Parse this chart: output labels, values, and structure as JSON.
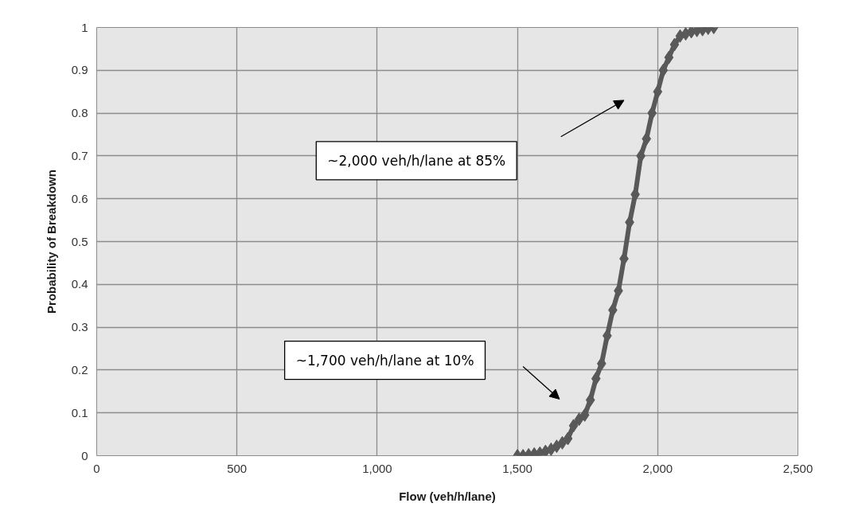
{
  "chart_data": {
    "type": "line",
    "xlabel": "Flow (veh/h/lane)",
    "ylabel": "Probability of Breakdown",
    "x": [
      1500,
      1520,
      1540,
      1560,
      1580,
      1600,
      1620,
      1640,
      1660,
      1680,
      1700,
      1720,
      1740,
      1760,
      1780,
      1800,
      1820,
      1840,
      1860,
      1880,
      1900,
      1920,
      1940,
      1960,
      1980,
      2000,
      2020,
      2040,
      2060,
      2080,
      2100,
      2120,
      2140,
      2160,
      2180,
      2200
    ],
    "series": [
      {
        "color": "#595959",
        "values": [
          0,
          0,
          0.002,
          0.004,
          0.006,
          0.01,
          0.015,
          0.022,
          0.03,
          0.04,
          0.07,
          0.085,
          0.095,
          0.13,
          0.18,
          0.215,
          0.28,
          0.34,
          0.385,
          0.46,
          0.545,
          0.61,
          0.7,
          0.74,
          0.8,
          0.85,
          0.9,
          0.93,
          0.96,
          0.98,
          0.985,
          0.99,
          0.993,
          0.995,
          0.998,
          1.0
        ]
      }
    ],
    "marker": "diamond",
    "line_style": "solid",
    "grid": true,
    "xlim": [
      0,
      2500
    ],
    "xticks": [
      {
        "value": 0,
        "label": "0"
      },
      {
        "value": 500,
        "label": "500"
      },
      {
        "value": 1000,
        "label": "1,000"
      },
      {
        "value": 1500,
        "label": "1,500"
      },
      {
        "value": 2000,
        "label": "2,000"
      },
      {
        "value": 2500,
        "label": "2,500"
      }
    ],
    "ylim": [
      0,
      1
    ],
    "yticks": [
      0,
      0.1,
      0.2,
      0.3,
      0.4,
      0.5,
      0.6,
      0.7,
      0.8,
      0.9,
      1
    ],
    "annotations": [
      "~2,000 veh/h/lane at 85%",
      "~1,700 veh/h/lane at 10%"
    ]
  }
}
